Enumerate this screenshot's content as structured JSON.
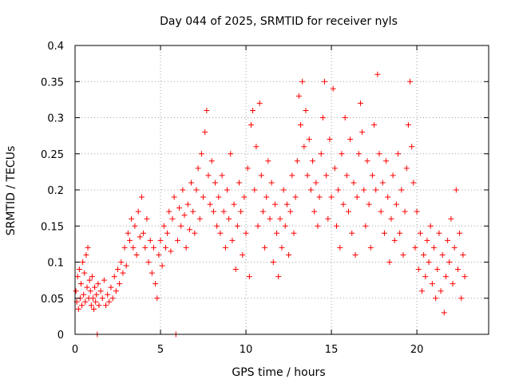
{
  "chart_data": {
    "type": "scatter",
    "title": "Day 044 of 2025, SRMTID for receiver nyls",
    "xlabel": "GPS time / hours",
    "ylabel": "SRMTID / TECUs",
    "xlim": [
      0,
      24.2
    ],
    "ylim": [
      0,
      0.4
    ],
    "x_ticks": [
      0,
      5,
      10,
      15,
      20
    ],
    "x_tick_labels": [
      "0",
      "5",
      "10",
      "15",
      "20"
    ],
    "y_ticks": [
      0,
      0.05,
      0.1,
      0.15,
      0.2,
      0.25,
      0.3,
      0.35,
      0.4
    ],
    "y_tick_labels": [
      "0",
      "0.05",
      "0.1",
      "0.15",
      "0.2",
      "0.25",
      "0.3",
      "0.35",
      "0.4"
    ],
    "grid": true,
    "marker": "+",
    "color": "#ff0000",
    "series": [
      {
        "name": "SRMTID",
        "points": [
          [
            0.05,
            0.06
          ],
          [
            0.1,
            0.045
          ],
          [
            0.15,
            0.08
          ],
          [
            0.2,
            0.035
          ],
          [
            0.25,
            0.09
          ],
          [
            0.3,
            0.05
          ],
          [
            0.35,
            0.07
          ],
          [
            0.4,
            0.04
          ],
          [
            0.45,
            0.1
          ],
          [
            0.5,
            0.055
          ],
          [
            0.55,
            0.085
          ],
          [
            0.6,
            0.045
          ],
          [
            0.65,
            0.11
          ],
          [
            0.7,
            0.065
          ],
          [
            0.75,
            0.12
          ],
          [
            0.8,
            0.05
          ],
          [
            0.85,
            0.075
          ],
          [
            0.9,
            0.06
          ],
          [
            0.95,
            0.04
          ],
          [
            1.0,
            0.08
          ],
          [
            1.05,
            0.05
          ],
          [
            1.1,
            0.035
          ],
          [
            1.15,
            0.065
          ],
          [
            1.2,
            0.045
          ],
          [
            1.25,
            0.055
          ],
          [
            1.3,
            0.0
          ],
          [
            1.35,
            0.07
          ],
          [
            1.4,
            0.04
          ],
          [
            1.5,
            0.06
          ],
          [
            1.6,
            0.05
          ],
          [
            1.7,
            0.075
          ],
          [
            1.8,
            0.04
          ],
          [
            1.9,
            0.055
          ],
          [
            2.0,
            0.045
          ],
          [
            2.1,
            0.065
          ],
          [
            2.2,
            0.05
          ],
          [
            2.3,
            0.08
          ],
          [
            2.4,
            0.06
          ],
          [
            2.5,
            0.09
          ],
          [
            2.6,
            0.07
          ],
          [
            2.7,
            0.1
          ],
          [
            2.8,
            0.085
          ],
          [
            2.9,
            0.12
          ],
          [
            3.0,
            0.095
          ],
          [
            3.1,
            0.14
          ],
          [
            3.2,
            0.13
          ],
          [
            3.3,
            0.16
          ],
          [
            3.4,
            0.12
          ],
          [
            3.5,
            0.15
          ],
          [
            3.6,
            0.11
          ],
          [
            3.7,
            0.17
          ],
          [
            3.8,
            0.135
          ],
          [
            3.9,
            0.19
          ],
          [
            4.0,
            0.14
          ],
          [
            4.1,
            0.12
          ],
          [
            4.2,
            0.16
          ],
          [
            4.3,
            0.1
          ],
          [
            4.4,
            0.13
          ],
          [
            4.5,
            0.085
          ],
          [
            4.6,
            0.12
          ],
          [
            4.7,
            0.07
          ],
          [
            4.8,
            0.05
          ],
          [
            4.9,
            0.11
          ],
          [
            5.0,
            0.13
          ],
          [
            5.1,
            0.095
          ],
          [
            5.2,
            0.15
          ],
          [
            5.3,
            0.12
          ],
          [
            5.4,
            0.14
          ],
          [
            5.5,
            0.17
          ],
          [
            5.6,
            0.115
          ],
          [
            5.7,
            0.16
          ],
          [
            5.8,
            0.19
          ],
          [
            5.9,
            0.0
          ],
          [
            6.0,
            0.13
          ],
          [
            6.1,
            0.175
          ],
          [
            6.2,
            0.15
          ],
          [
            6.3,
            0.2
          ],
          [
            6.4,
            0.165
          ],
          [
            6.5,
            0.12
          ],
          [
            6.6,
            0.18
          ],
          [
            6.7,
            0.145
          ],
          [
            6.8,
            0.21
          ],
          [
            6.9,
            0.17
          ],
          [
            7.0,
            0.14
          ],
          [
            7.1,
            0.2
          ],
          [
            7.2,
            0.23
          ],
          [
            7.3,
            0.16
          ],
          [
            7.4,
            0.25
          ],
          [
            7.5,
            0.19
          ],
          [
            7.6,
            0.28
          ],
          [
            7.7,
            0.31
          ],
          [
            7.8,
            0.22
          ],
          [
            7.9,
            0.18
          ],
          [
            8.0,
            0.24
          ],
          [
            8.1,
            0.17
          ],
          [
            8.2,
            0.21
          ],
          [
            8.3,
            0.15
          ],
          [
            8.4,
            0.19
          ],
          [
            8.5,
            0.14
          ],
          [
            8.6,
            0.22
          ],
          [
            8.7,
            0.17
          ],
          [
            8.8,
            0.12
          ],
          [
            8.9,
            0.2
          ],
          [
            9.0,
            0.16
          ],
          [
            9.1,
            0.25
          ],
          [
            9.2,
            0.13
          ],
          [
            9.3,
            0.18
          ],
          [
            9.4,
            0.09
          ],
          [
            9.5,
            0.15
          ],
          [
            9.6,
            0.21
          ],
          [
            9.7,
            0.17
          ],
          [
            9.8,
            0.11
          ],
          [
            9.9,
            0.19
          ],
          [
            10.0,
            0.14
          ],
          [
            10.1,
            0.23
          ],
          [
            10.2,
            0.08
          ],
          [
            10.3,
            0.29
          ],
          [
            10.4,
            0.31
          ],
          [
            10.5,
            0.2
          ],
          [
            10.6,
            0.26
          ],
          [
            10.7,
            0.15
          ],
          [
            10.8,
            0.32
          ],
          [
            10.9,
            0.22
          ],
          [
            11.0,
            0.17
          ],
          [
            11.1,
            0.12
          ],
          [
            11.2,
            0.19
          ],
          [
            11.3,
            0.24
          ],
          [
            11.4,
            0.16
          ],
          [
            11.5,
            0.21
          ],
          [
            11.6,
            0.1
          ],
          [
            11.7,
            0.18
          ],
          [
            11.8,
            0.14
          ],
          [
            11.9,
            0.08
          ],
          [
            12.0,
            0.16
          ],
          [
            12.1,
            0.12
          ],
          [
            12.2,
            0.2
          ],
          [
            12.3,
            0.15
          ],
          [
            12.4,
            0.18
          ],
          [
            12.5,
            0.11
          ],
          [
            12.6,
            0.17
          ],
          [
            12.7,
            0.22
          ],
          [
            12.8,
            0.14
          ],
          [
            12.9,
            0.19
          ],
          [
            13.0,
            0.24
          ],
          [
            13.1,
            0.33
          ],
          [
            13.2,
            0.29
          ],
          [
            13.3,
            0.35
          ],
          [
            13.4,
            0.26
          ],
          [
            13.5,
            0.31
          ],
          [
            13.6,
            0.22
          ],
          [
            13.7,
            0.27
          ],
          [
            13.8,
            0.2
          ],
          [
            13.9,
            0.24
          ],
          [
            14.0,
            0.17
          ],
          [
            14.1,
            0.21
          ],
          [
            14.2,
            0.15
          ],
          [
            14.3,
            0.19
          ],
          [
            14.4,
            0.25
          ],
          [
            14.5,
            0.3
          ],
          [
            14.6,
            0.35
          ],
          [
            14.7,
            0.22
          ],
          [
            14.8,
            0.16
          ],
          [
            14.9,
            0.27
          ],
          [
            15.0,
            0.19
          ],
          [
            15.1,
            0.34
          ],
          [
            15.2,
            0.23
          ],
          [
            15.3,
            0.15
          ],
          [
            15.4,
            0.2
          ],
          [
            15.5,
            0.12
          ],
          [
            15.6,
            0.25
          ],
          [
            15.7,
            0.18
          ],
          [
            15.8,
            0.3
          ],
          [
            15.9,
            0.22
          ],
          [
            16.0,
            0.17
          ],
          [
            16.1,
            0.27
          ],
          [
            16.2,
            0.14
          ],
          [
            16.3,
            0.21
          ],
          [
            16.4,
            0.11
          ],
          [
            16.5,
            0.19
          ],
          [
            16.6,
            0.25
          ],
          [
            16.7,
            0.32
          ],
          [
            16.8,
            0.28
          ],
          [
            16.9,
            0.2
          ],
          [
            17.0,
            0.15
          ],
          [
            17.1,
            0.24
          ],
          [
            17.2,
            0.18
          ],
          [
            17.3,
            0.12
          ],
          [
            17.4,
            0.22
          ],
          [
            17.5,
            0.29
          ],
          [
            17.6,
            0.2
          ],
          [
            17.7,
            0.36
          ],
          [
            17.8,
            0.25
          ],
          [
            17.9,
            0.17
          ],
          [
            18.0,
            0.21
          ],
          [
            18.1,
            0.14
          ],
          [
            18.2,
            0.24
          ],
          [
            18.3,
            0.19
          ],
          [
            18.4,
            0.1
          ],
          [
            18.5,
            0.16
          ],
          [
            18.6,
            0.22
          ],
          [
            18.7,
            0.13
          ],
          [
            18.8,
            0.18
          ],
          [
            18.9,
            0.25
          ],
          [
            19.0,
            0.14
          ],
          [
            19.1,
            0.2
          ],
          [
            19.2,
            0.11
          ],
          [
            19.3,
            0.17
          ],
          [
            19.4,
            0.23
          ],
          [
            19.5,
            0.29
          ],
          [
            19.6,
            0.35
          ],
          [
            19.7,
            0.26
          ],
          [
            19.8,
            0.21
          ],
          [
            19.9,
            0.12
          ],
          [
            20.0,
            0.17
          ],
          [
            20.1,
            0.09
          ],
          [
            20.2,
            0.14
          ],
          [
            20.3,
            0.06
          ],
          [
            20.4,
            0.11
          ],
          [
            20.5,
            0.08
          ],
          [
            20.6,
            0.13
          ],
          [
            20.7,
            0.1
          ],
          [
            20.8,
            0.15
          ],
          [
            20.9,
            0.07
          ],
          [
            21.0,
            0.12
          ],
          [
            21.1,
            0.05
          ],
          [
            21.2,
            0.09
          ],
          [
            21.3,
            0.14
          ],
          [
            21.4,
            0.06
          ],
          [
            21.5,
            0.11
          ],
          [
            21.6,
            0.03
          ],
          [
            21.7,
            0.08
          ],
          [
            21.8,
            0.13
          ],
          [
            21.9,
            0.1
          ],
          [
            22.0,
            0.16
          ],
          [
            22.1,
            0.07
          ],
          [
            22.2,
            0.12
          ],
          [
            22.3,
            0.2
          ],
          [
            22.4,
            0.09
          ],
          [
            22.5,
            0.14
          ],
          [
            22.6,
            0.05
          ],
          [
            22.7,
            0.11
          ],
          [
            22.8,
            0.08
          ]
        ]
      }
    ]
  }
}
